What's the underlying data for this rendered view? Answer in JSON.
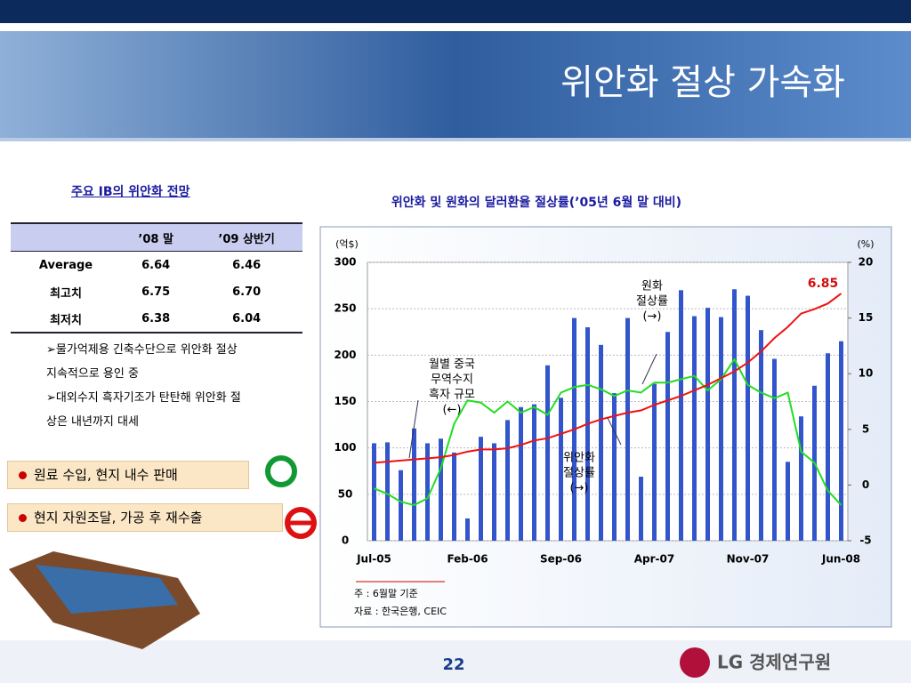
{
  "header": {
    "title": "위안화 절상 가속화"
  },
  "table": {
    "title": "주요 IB의 위안화 전망",
    "header": [
      "’08 말",
      "’09 상반기"
    ],
    "rows": [
      [
        "Average",
        "6.64",
        "6.46"
      ],
      [
        "최고치",
        "6.75",
        "6.70"
      ],
      [
        "최저치",
        "6.38",
        "6.04"
      ]
    ]
  },
  "bullets": [
    "물가억제용 긴축수단으로 위안화 절상 지속적으로 용인 중",
    "대외수지 흑자기조가 탄탄해 위안화 절상은 내년까지 대세"
  ],
  "boxes": [
    "원료 수입, 현지 내수 판매",
    "현지 자원조달, 가공 후 재수출"
  ],
  "footer": {
    "page": "22",
    "logo": "LG 경제연구원"
  },
  "chart_data": {
    "type": "bar",
    "title": "위안화 및 원화의 달러환율 절상률(’05년 6월 말 대비)",
    "ylabel": "(억$)",
    "y2label": "(%)",
    "categories": [
      "Jul-05",
      null,
      null,
      null,
      null,
      null,
      null,
      "Feb-06",
      null,
      null,
      null,
      null,
      null,
      null,
      "Sep-06",
      null,
      null,
      null,
      null,
      null,
      null,
      "Apr-07",
      null,
      null,
      null,
      null,
      null,
      null,
      "Nov-07",
      null,
      null,
      null,
      null,
      null,
      null,
      "Jun-08"
    ],
    "series": [
      {
        "name": [
          "월별 중국",
          "무역수지",
          "흑자 규모",
          "(←)"
        ],
        "type": "bar",
        "color": "#3355cc",
        "axis": "y",
        "values": [
          105,
          106,
          76,
          121,
          105,
          110,
          95,
          24,
          112,
          105,
          130,
          144,
          147,
          189,
          154,
          240,
          230,
          211,
          159,
          240,
          69,
          169,
          225,
          270,
          242,
          251,
          241,
          271,
          264,
          227,
          196,
          85,
          134,
          167,
          202,
          215
        ]
      },
      {
        "name": [
          "원화",
          "절상률",
          "(→)"
        ],
        "type": "line",
        "color": "#22dd22",
        "axis": "y2",
        "values": [
          -0.3,
          -0.8,
          -1.5,
          -1.8,
          -1.2,
          1.5,
          5.5,
          7.6,
          7.4,
          6.5,
          7.5,
          6.5,
          7.0,
          6.3,
          8.3,
          8.8,
          9.0,
          8.6,
          8.0,
          8.5,
          8.3,
          9.2,
          9.2,
          9.5,
          9.8,
          8.5,
          9.5,
          11.3,
          9.0,
          8.3,
          7.8,
          8.3,
          3.0,
          2.0,
          -0.5,
          -1.8
        ]
      },
      {
        "name": [
          "위안화",
          "절상률",
          "(→)"
        ],
        "type": "line",
        "color": "#ee1111",
        "axis": "y2",
        "values": [
          2.0,
          2.1,
          2.2,
          2.3,
          2.4,
          2.5,
          2.7,
          3.0,
          3.2,
          3.2,
          3.3,
          3.6,
          4.0,
          4.2,
          4.6,
          5.0,
          5.5,
          5.9,
          6.2,
          6.5,
          6.7,
          7.2,
          7.6,
          8.0,
          8.5,
          9.0,
          9.6,
          10.2,
          11.0,
          12.0,
          13.2,
          14.2,
          15.4,
          15.8,
          16.3,
          17.2
        ]
      }
    ],
    "annotation": "6.85",
    "ylim": [
      0,
      300
    ],
    "yticks": [
      0,
      50,
      100,
      150,
      200,
      250,
      300
    ],
    "y2lim": [
      -5,
      20
    ],
    "y2ticks": [
      -5,
      0,
      5,
      10,
      15,
      20
    ],
    "notes": [
      "주 : 6월말 기준",
      "자료 : 한국은행, CEIC"
    ]
  }
}
